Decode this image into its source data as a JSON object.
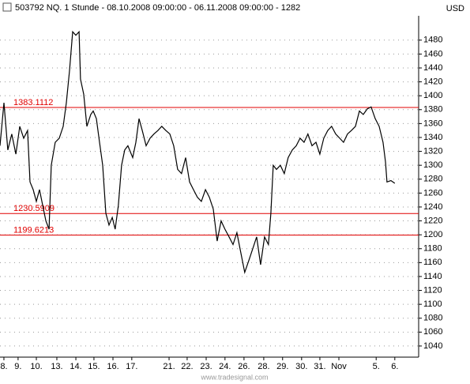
{
  "chart_data": {
    "type": "line",
    "title": "503792  NQ. 1 Stunde - 08.10.2008 09:00:00 - 06.11.2008 09:00:00 - 1282",
    "currency": "USD",
    "footer": "www.tradesignal.com",
    "grid": true,
    "series": [
      {
        "color": "#000000",
        "x": [
          -0.21,
          0,
          0.21,
          0.42,
          0.64,
          0.85,
          1.06,
          1.27,
          1.4,
          1.57,
          1.74,
          1.91,
          2.12,
          2.25,
          2.42,
          2.54,
          2.75,
          2.97,
          3.18,
          3.35,
          3.52,
          3.69,
          3.86,
          4.03,
          4.11,
          4.28,
          4.45,
          4.66,
          4.79,
          4.96,
          5.13,
          5.3,
          5.47,
          5.64,
          5.81,
          5.97,
          6.14,
          6.31,
          6.48,
          6.65,
          6.91,
          7.08,
          7.25,
          7.42,
          7.63,
          7.84,
          8.05,
          8.26,
          8.47,
          8.69,
          8.9,
          9.11,
          9.32,
          9.53,
          9.75,
          9.96,
          10.17,
          10.38,
          10.59,
          10.81,
          11.02,
          11.23,
          11.44,
          11.65,
          11.86,
          12.08,
          12.29,
          12.5,
          12.71,
          12.92,
          13.14,
          13.35,
          13.56,
          13.77,
          13.98,
          14.19,
          14.32,
          14.45,
          14.62,
          14.83,
          15.04,
          15.25,
          15.47,
          15.68,
          15.89,
          16.1,
          16.31,
          16.53,
          16.74,
          16.95,
          17.16,
          17.37,
          17.58,
          17.8,
          18.01,
          18.22,
          18.43,
          18.64,
          18.86,
          19.07,
          19.28,
          19.49,
          19.7,
          19.92,
          20.13,
          20.34,
          20.47,
          20.55,
          20.76,
          20.97
        ],
        "values": [
          1328,
          1390,
          1322,
          1345,
          1316,
          1356,
          1339,
          1350,
          1276,
          1265,
          1248,
          1265,
          1237,
          1220,
          1208,
          1300,
          1333,
          1339,
          1356,
          1390,
          1436,
          1492,
          1487,
          1492,
          1424,
          1402,
          1356,
          1373,
          1378,
          1367,
          1333,
          1300,
          1231,
          1214,
          1225,
          1208,
          1242,
          1300,
          1322,
          1328,
          1311,
          1333,
          1367,
          1350,
          1328,
          1339,
          1345,
          1350,
          1356,
          1350,
          1345,
          1328,
          1294,
          1288,
          1311,
          1276,
          1265,
          1254,
          1248,
          1265,
          1254,
          1237,
          1191,
          1220,
          1208,
          1197,
          1186,
          1203,
          1174,
          1146,
          1163,
          1180,
          1197,
          1157,
          1197,
          1186,
          1231,
          1300,
          1294,
          1300,
          1288,
          1311,
          1322,
          1328,
          1339,
          1333,
          1345,
          1328,
          1333,
          1316,
          1339,
          1350,
          1356,
          1345,
          1339,
          1333,
          1345,
          1350,
          1356,
          1378,
          1373,
          1381,
          1384,
          1367,
          1356,
          1333,
          1305,
          1276,
          1278,
          1274
        ]
      }
    ],
    "hlines": [
      1383.1112,
      1230.5909,
      1199.6213
    ],
    "hline_color": "#e00000",
    "xlim": [
      -0.21,
      21.19
    ],
    "xticks": [
      {
        "value": 0,
        "label": "8."
      },
      {
        "value": 0.76,
        "label": "9."
      },
      {
        "value": 1.74,
        "label": "10."
      },
      {
        "value": 2.84,
        "label": "13."
      },
      {
        "value": 3.86,
        "label": "14."
      },
      {
        "value": 4.83,
        "label": "15."
      },
      {
        "value": 5.85,
        "label": "16."
      },
      {
        "value": 6.86,
        "label": "17."
      },
      {
        "value": 8.86,
        "label": "21."
      },
      {
        "value": 9.83,
        "label": "22."
      },
      {
        "value": 10.85,
        "label": "23."
      },
      {
        "value": 11.86,
        "label": "24."
      },
      {
        "value": 12.88,
        "label": "26."
      },
      {
        "value": 13.94,
        "label": "28."
      },
      {
        "value": 14.95,
        "label": "29."
      },
      {
        "value": 15.97,
        "label": "30."
      },
      {
        "value": 16.95,
        "label": "31."
      },
      {
        "value": 17.97,
        "label": "Nov"
      },
      {
        "value": 19.97,
        "label": "5."
      },
      {
        "value": 20.97,
        "label": "6."
      }
    ],
    "ylim": [
      1024,
      1515
    ],
    "yticks": [
      1040,
      1060,
      1080,
      1100,
      1120,
      1140,
      1160,
      1180,
      1200,
      1220,
      1240,
      1260,
      1280,
      1300,
      1320,
      1340,
      1360,
      1380,
      1400,
      1420,
      1440,
      1460,
      1480
    ]
  }
}
